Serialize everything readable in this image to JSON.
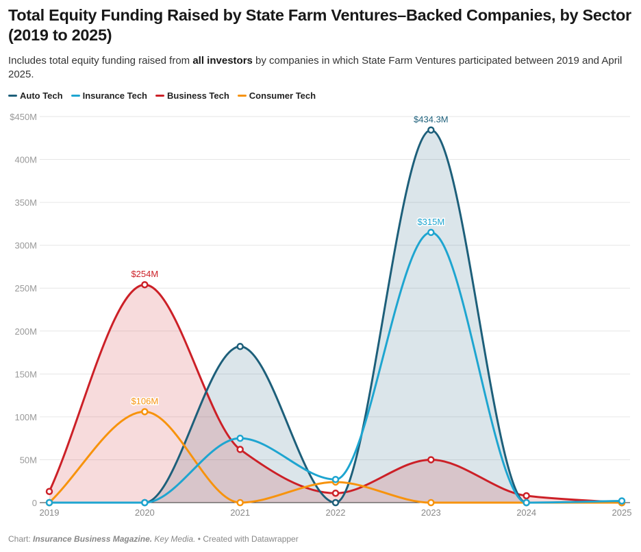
{
  "header": {
    "title": "Total Equity Funding Raised by State Farm Ventures–Backed Companies, by Sector (2019 to 2025)",
    "subtitle_pre": "Includes total equity funding raised from ",
    "subtitle_bold": "all investors",
    "subtitle_post": " by companies in which State Farm Ventures participated between 2019 and April 2025."
  },
  "footer": {
    "prefix": "Chart: ",
    "source": "Insurance Business Magazine.",
    "org": " Key Media.",
    "suffix": " • Created with Datawrapper"
  },
  "chart_data": {
    "type": "area",
    "title": "Total Equity Funding Raised by State Farm Ventures–Backed Companies, by Sector (2019 to 2025)",
    "xlabel": "",
    "ylabel": "",
    "x": [
      "2019",
      "2020",
      "2021",
      "2022",
      "2023",
      "2024",
      "2025"
    ],
    "ylim": [
      0,
      450
    ],
    "yticks": [
      0,
      50,
      100,
      150,
      200,
      250,
      300,
      350,
      400,
      450
    ],
    "ytick_labels": [
      "0",
      "50M",
      "100M",
      "150M",
      "200M",
      "250M",
      "300M",
      "350M",
      "400M",
      "$450M"
    ],
    "legend_position": "top-left",
    "grid": true,
    "series": [
      {
        "name": "Auto Tech",
        "color": "#1d5f7a",
        "fill": true,
        "values": [
          0,
          0,
          182,
          0,
          434.3,
          0,
          0
        ],
        "annotations": [
          {
            "x": "2023",
            "label": "$434.3M"
          }
        ]
      },
      {
        "name": "Insurance Tech",
        "color": "#1ea5d0",
        "fill": false,
        "values": [
          0,
          0,
          75,
          27,
          315,
          0,
          2
        ],
        "annotations": [
          {
            "x": "2023",
            "label": "$315M"
          }
        ]
      },
      {
        "name": "Business Tech",
        "color": "#cc2027",
        "fill": true,
        "values": [
          13,
          254,
          62,
          11,
          50,
          8,
          0
        ],
        "annotations": [
          {
            "x": "2020",
            "label": "$254M"
          }
        ]
      },
      {
        "name": "Consumer Tech",
        "color": "#f7930d",
        "fill": false,
        "values": [
          0,
          106,
          0,
          24,
          0,
          0,
          0
        ],
        "annotations": [
          {
            "x": "2020",
            "label": "$106M"
          }
        ]
      }
    ]
  }
}
